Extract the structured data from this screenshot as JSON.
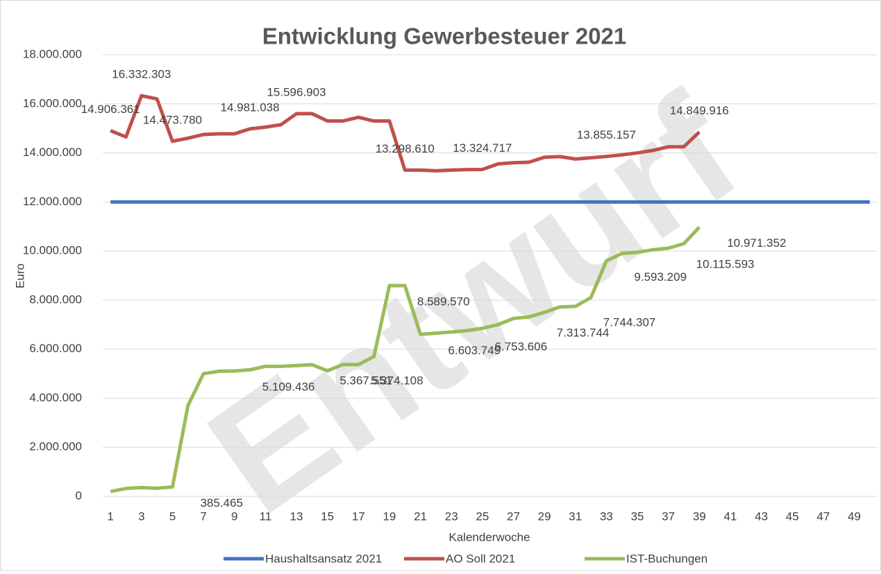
{
  "chart_data": {
    "type": "line",
    "title": "Entwicklung Gewerbesteuer 2021",
    "watermark": "Entwurf",
    "x_label": "Kalenderwoche",
    "y_label": "Euro",
    "x": [
      1,
      2,
      3,
      4,
      5,
      6,
      7,
      8,
      9,
      10,
      11,
      12,
      13,
      14,
      15,
      16,
      17,
      18,
      19,
      20,
      21,
      22,
      23,
      24,
      25,
      26,
      27,
      28,
      29,
      30,
      31,
      32,
      33,
      34,
      35,
      36,
      37,
      38,
      39,
      40,
      41,
      42,
      43,
      44,
      45,
      46,
      47,
      48,
      49,
      50
    ],
    "xlim": [
      0.5,
      50.5
    ],
    "xticks": [
      1,
      3,
      5,
      7,
      9,
      11,
      13,
      15,
      17,
      19,
      21,
      23,
      25,
      27,
      29,
      31,
      33,
      35,
      37,
      39,
      41,
      43,
      45,
      47,
      49
    ],
    "ylim": [
      0,
      18000000
    ],
    "yticks": [
      0,
      {
        "value": 2000000,
        "label": "2.000.000"
      },
      {
        "value": 4000000,
        "label": "4.000.000"
      },
      {
        "value": 6000000,
        "label": "6.000.000"
      },
      {
        "value": 8000000,
        "label": "8.000.000"
      },
      {
        "value": 10000000,
        "label": "10.000.000"
      },
      {
        "value": 12000000,
        "label": "12.000.000"
      },
      {
        "value": 14000000,
        "label": "14.000.000"
      },
      {
        "value": 16000000,
        "label": "16.000.000"
      },
      {
        "value": 18000000,
        "label": "18.000.000"
      }
    ],
    "grid": true,
    "legend": "bottom",
    "series": [
      {
        "name": "Haushaltsansatz 2021",
        "color": "#4472c4",
        "values": [
          12000000,
          12000000,
          12000000,
          12000000,
          12000000,
          12000000,
          12000000,
          12000000,
          12000000,
          12000000,
          12000000,
          12000000,
          12000000,
          12000000,
          12000000,
          12000000,
          12000000,
          12000000,
          12000000,
          12000000,
          12000000,
          12000000,
          12000000,
          12000000,
          12000000,
          12000000,
          12000000,
          12000000,
          12000000,
          12000000,
          12000000,
          12000000,
          12000000,
          12000000,
          12000000,
          12000000,
          12000000,
          12000000,
          12000000,
          12000000,
          12000000,
          12000000,
          12000000,
          12000000,
          12000000,
          12000000,
          12000000,
          12000000,
          12000000,
          12000000
        ]
      },
      {
        "name": "AO Soll 2021",
        "color": "#c0504d",
        "values": [
          14906361,
          14650000,
          16332303,
          16200000,
          14473780,
          14600000,
          14750000,
          14780000,
          14780000,
          14981038,
          15050000,
          15150000,
          15596903,
          15600000,
          15300000,
          15300000,
          15450000,
          15300000,
          15300000,
          13298610,
          13300000,
          13270000,
          13300000,
          13320000,
          13324717,
          13550000,
          13600000,
          13620000,
          13820000,
          13850000,
          13750000,
          13800000,
          13855157,
          13920000,
          14000000,
          14100000,
          14250000,
          14250000,
          14849916,
          null,
          null,
          null,
          null,
          null,
          null,
          null,
          null,
          null,
          null,
          null
        ],
        "value_labels": [
          "14.906.361",
          null,
          "16.332.303",
          null,
          "14.473.780",
          null,
          null,
          null,
          null,
          "14.981.038",
          null,
          null,
          "15.596.903",
          null,
          null,
          null,
          null,
          null,
          null,
          "13.298.610",
          null,
          null,
          null,
          null,
          "13.324.717",
          null,
          null,
          null,
          null,
          null,
          null,
          null,
          "13.855.157",
          null,
          null,
          null,
          null,
          null,
          "14.849.916",
          null,
          null,
          null,
          null,
          null,
          null,
          null,
          null,
          null,
          null,
          null
        ]
      },
      {
        "name": "IST-Buchungen",
        "color": "#9bbb59",
        "values": [
          200000,
          320000,
          360000,
          330000,
          385465,
          3700000,
          5000000,
          5100000,
          5109436,
          5160000,
          5300000,
          5300000,
          5330000,
          5367551,
          5120000,
          5374108,
          5370000,
          5700000,
          8589570,
          8590000,
          6603749,
          6650000,
          6700000,
          6753606,
          6850000,
          7000000,
          7250000,
          7313744,
          7500000,
          7720000,
          7744307,
          8100000,
          9593209,
          9900000,
          9950000,
          10050000,
          10115593,
          10300000,
          10971352,
          null,
          null,
          null,
          null,
          null,
          null,
          null,
          null,
          null,
          null,
          null
        ],
        "value_labels": [
          null,
          null,
          null,
          null,
          "385.465",
          null,
          null,
          null,
          "5.109.436",
          null,
          null,
          null,
          null,
          "5.367.551",
          null,
          "5.374.108",
          null,
          null,
          "8.589.570",
          null,
          "6.603.749",
          null,
          null,
          "6.753.606",
          null,
          null,
          null,
          "7.313.744",
          null,
          null,
          "7.744.307",
          null,
          "9.593.209",
          null,
          null,
          null,
          "10.115.593",
          null,
          "10.971.352",
          null,
          null,
          null,
          null,
          null,
          null,
          null,
          null,
          null,
          null,
          null
        ]
      }
    ]
  }
}
